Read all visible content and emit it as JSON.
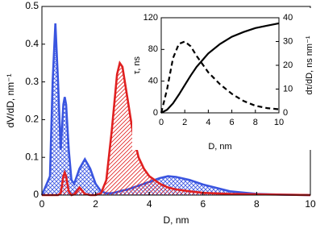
{
  "chart_data": [
    {
      "type": "line",
      "xlabel": "D, nm",
      "ylabel": "dV/dD, nm⁻¹",
      "x": [
        0,
        0.3,
        0.4,
        0.5,
        0.6,
        0.7,
        0.8,
        0.85,
        0.9,
        1.0,
        1.1,
        1.2,
        1.4,
        1.6,
        1.8,
        2.0,
        2.2,
        2.4,
        2.6,
        2.8,
        2.9,
        3.0,
        3.2,
        3.4,
        3.6,
        3.8,
        4.0,
        4.4,
        4.7,
        5.0,
        5.5,
        6.0,
        7.0,
        8.0,
        9.0,
        10.0
      ],
      "xlim": [
        0,
        10
      ],
      "xticks": [
        0,
        2,
        4,
        6,
        8,
        10
      ],
      "ylim": [
        0,
        0.5
      ],
      "yticks": [
        0,
        0.1,
        0.2,
        0.3,
        0.4,
        0.5
      ],
      "series": [
        {
          "color": "#3a55e0",
          "fill": "crosshatch",
          "values": [
            0,
            0.05,
            0.3,
            0.455,
            0.3,
            0.12,
            0.24,
            0.26,
            0.24,
            0.12,
            0.04,
            0.03,
            0.07,
            0.095,
            0.07,
            0.03,
            0.01,
            0.005,
            0.005,
            0.008,
            0.01,
            0.012,
            0.015,
            0.02,
            0.025,
            0.03,
            0.035,
            0.045,
            0.05,
            0.048,
            0.04,
            0.028,
            0.01,
            0.003,
            0.001,
            0
          ]
        },
        {
          "color": "#e02020",
          "fill": "hatch",
          "values": [
            0,
            0,
            0,
            0,
            0,
            0.005,
            0.05,
            0.06,
            0.05,
            0.01,
            0,
            0.002,
            0.02,
            0.003,
            0,
            0,
            0.005,
            0.04,
            0.17,
            0.32,
            0.35,
            0.34,
            0.25,
            0.16,
            0.1,
            0.07,
            0.05,
            0.03,
            0.02,
            0.015,
            0.01,
            0.006,
            0.003,
            0.002,
            0.001,
            0
          ]
        }
      ]
    },
    {
      "type": "line",
      "xlabel": "D, nm",
      "ylabel": "τ, ns",
      "y2label": "dτ/dD, ns nm⁻¹",
      "x": [
        0,
        0.5,
        1,
        1.5,
        2,
        2.5,
        3,
        4,
        5,
        6,
        7,
        8,
        9,
        10
      ],
      "xlim": [
        0,
        10
      ],
      "xticks": [
        0,
        2,
        4,
        6,
        8,
        10
      ],
      "ylim": [
        0,
        120
      ],
      "yticks": [
        0,
        40,
        80,
        120
      ],
      "y2lim": [
        0,
        40
      ],
      "y2ticks": [
        0,
        10,
        20,
        30,
        40
      ],
      "series": [
        {
          "color": "#000000",
          "values": [
            0,
            4,
            12,
            23,
            35,
            47,
            58,
            75,
            87,
            96,
            102,
            107,
            110,
            113
          ]
        },
        {
          "color": "#000000",
          "dash": true,
          "axis": "y2",
          "values": [
            0,
            10,
            23,
            29,
            30,
            28,
            24,
            17,
            12,
            8,
            5,
            3,
            2,
            1.5
          ]
        }
      ]
    }
  ]
}
